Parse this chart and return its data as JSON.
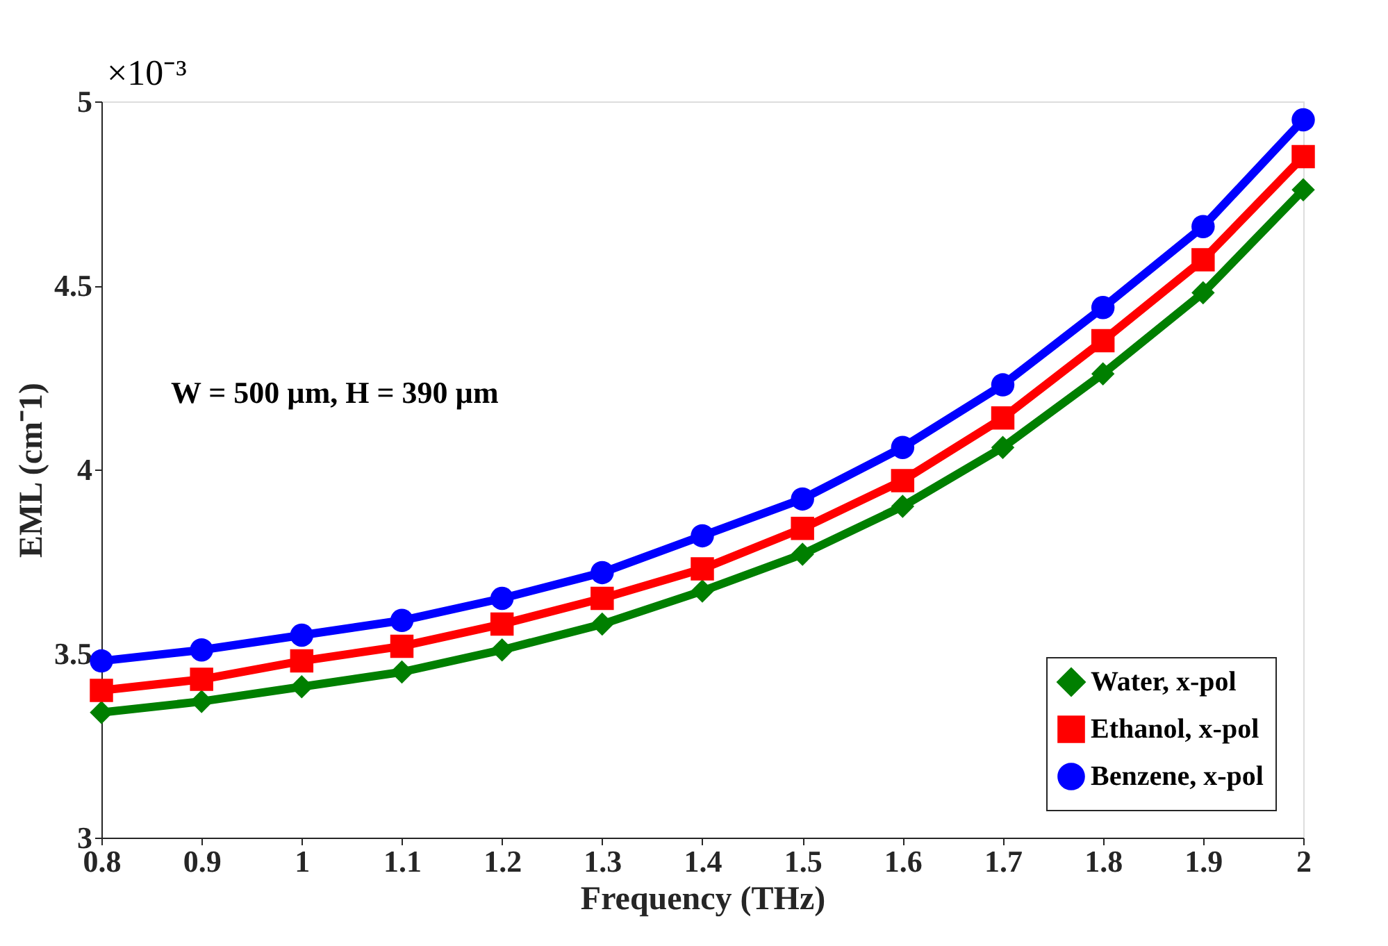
{
  "chart_data": {
    "type": "line",
    "xlabel": "Frequency (THz)",
    "ylabel": "EML (cm⁻1)",
    "x": [
      0.8,
      0.9,
      1.0,
      1.1,
      1.2,
      1.3,
      1.4,
      1.5,
      1.6,
      1.7,
      1.8,
      1.9,
      2.0
    ],
    "series": [
      {
        "name": "Water, x-pol",
        "color": "#007f00",
        "marker": "diamond",
        "values": [
          3.34,
          3.37,
          3.41,
          3.45,
          3.51,
          3.58,
          3.67,
          3.77,
          3.9,
          4.06,
          4.26,
          4.48,
          4.76
        ]
      },
      {
        "name": "Ethanol, x-pol",
        "color": "#ff0000",
        "marker": "square",
        "values": [
          3.4,
          3.43,
          3.48,
          3.52,
          3.58,
          3.65,
          3.73,
          3.84,
          3.97,
          4.14,
          4.35,
          4.57,
          4.85
        ]
      },
      {
        "name": "Benzene, x-pol",
        "color": "#0000ff",
        "marker": "circle",
        "values": [
          3.48,
          3.51,
          3.55,
          3.59,
          3.65,
          3.72,
          3.82,
          3.92,
          4.06,
          4.23,
          4.44,
          4.66,
          4.95
        ]
      }
    ],
    "xlim": [
      0.8,
      2.0
    ],
    "xticks": [
      0.8,
      0.9,
      1,
      1.1,
      1.2,
      1.3,
      1.4,
      1.5,
      1.6,
      1.7,
      1.8,
      1.9,
      2
    ],
    "ylim": [
      3,
      5
    ],
    "yticks": [
      3,
      3.5,
      4,
      4.5,
      5
    ],
    "annotations": [
      "×10⁻³",
      "W = 500 µm, H = 390 µm"
    ],
    "legend": "bottom right",
    "grid": false,
    "line_style": "solid"
  }
}
